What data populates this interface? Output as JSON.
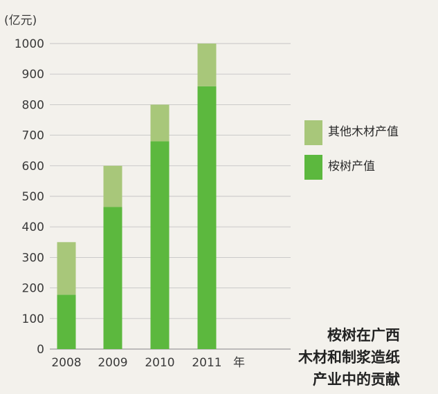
{
  "chart_data": {
    "type": "bar",
    "stacked": true,
    "categories": [
      "2008",
      "2009",
      "2010",
      "2011"
    ],
    "series": [
      {
        "name": "桉树产值",
        "values": [
          178,
          465,
          680,
          860
        ],
        "color": "#5cb83e"
      },
      {
        "name": "其他木材产值",
        "values": [
          172,
          135,
          120,
          140
        ],
        "color": "#a8c77a"
      }
    ],
    "ylim": [
      0,
      1000
    ],
    "yticks": [
      0,
      100,
      200,
      300,
      400,
      500,
      600,
      700,
      800,
      900,
      1000
    ],
    "ylabel": "(亿元)",
    "xlabel": "年",
    "grid": true,
    "legend_position": "right",
    "legend": [
      {
        "label": "其他木材产值",
        "color": "#a8c77a"
      },
      {
        "label": "桉树产值",
        "color": "#5cb83e"
      }
    ],
    "title_lines": [
      "桉树在广西",
      "木材和制浆造纸",
      "产业中的贡献"
    ]
  }
}
